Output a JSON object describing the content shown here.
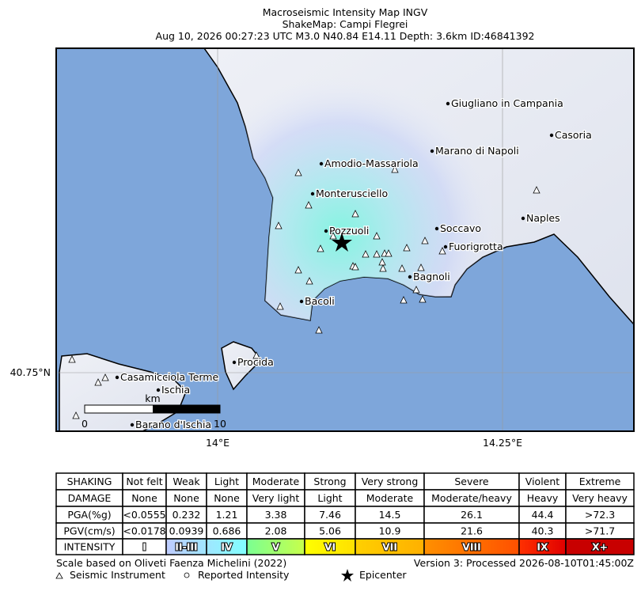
{
  "header": {
    "title": "Macroseismic Intensity Map INGV",
    "subtitle": "ShakeMap: Campi Flegrei",
    "info": "Aug 10, 2026 00:27:23 UTC M3.0 N40.84 E14.11 Depth: 3.6km ID:46841392"
  },
  "map": {
    "places": [
      "Giugliano in Campania",
      "Casoria",
      "Marano di Napoli",
      "Amodio-Massariola",
      "Monterusciello",
      "Naples",
      "Pozzuoli",
      "Soccavo",
      "Fuorigrotta",
      "Bagnoli",
      "Bacoli",
      "Procida",
      "Casamicciola Terme",
      "Ischia",
      "Barano d'Ischia"
    ],
    "lon_labels": [
      "14°E",
      "14.25°E"
    ],
    "lat_labels": [
      "40.75°N"
    ],
    "scale": {
      "unit": "km",
      "start": "0",
      "end": "10"
    }
  },
  "table": {
    "rows": [
      [
        "SHAKING",
        "Not felt",
        "Weak",
        "Light",
        "Moderate",
        "Strong",
        "Very strong",
        "Severe",
        "Violent",
        "Extreme"
      ],
      [
        "DAMAGE",
        "None",
        "None",
        "None",
        "Very light",
        "Light",
        "Moderate",
        "Moderate/heavy",
        "Heavy",
        "Very heavy"
      ],
      [
        "PGA(%g)",
        "<0.0555",
        "0.232",
        "1.21",
        "3.38",
        "7.46",
        "14.5",
        "26.1",
        "44.4",
        ">72.3"
      ],
      [
        "PGV(cm/s)",
        "<0.0178",
        "0.0939",
        "0.686",
        "2.08",
        "5.06",
        "10.9",
        "21.6",
        "40.3",
        ">71.7"
      ],
      [
        "INTENSITY",
        "I",
        "II-III",
        "IV",
        "V",
        "VI",
        "VII",
        "VIII",
        "IX",
        "X+"
      ]
    ]
  },
  "footer": {
    "scale_note": "Scale based on Oliveti Faenza Michelini (2022)",
    "version": "Version 3: Processed 2026-08-10T01:45:00Z",
    "legend": [
      "Seismic Instrument",
      "Reported Intensity",
      "Epicenter"
    ]
  }
}
